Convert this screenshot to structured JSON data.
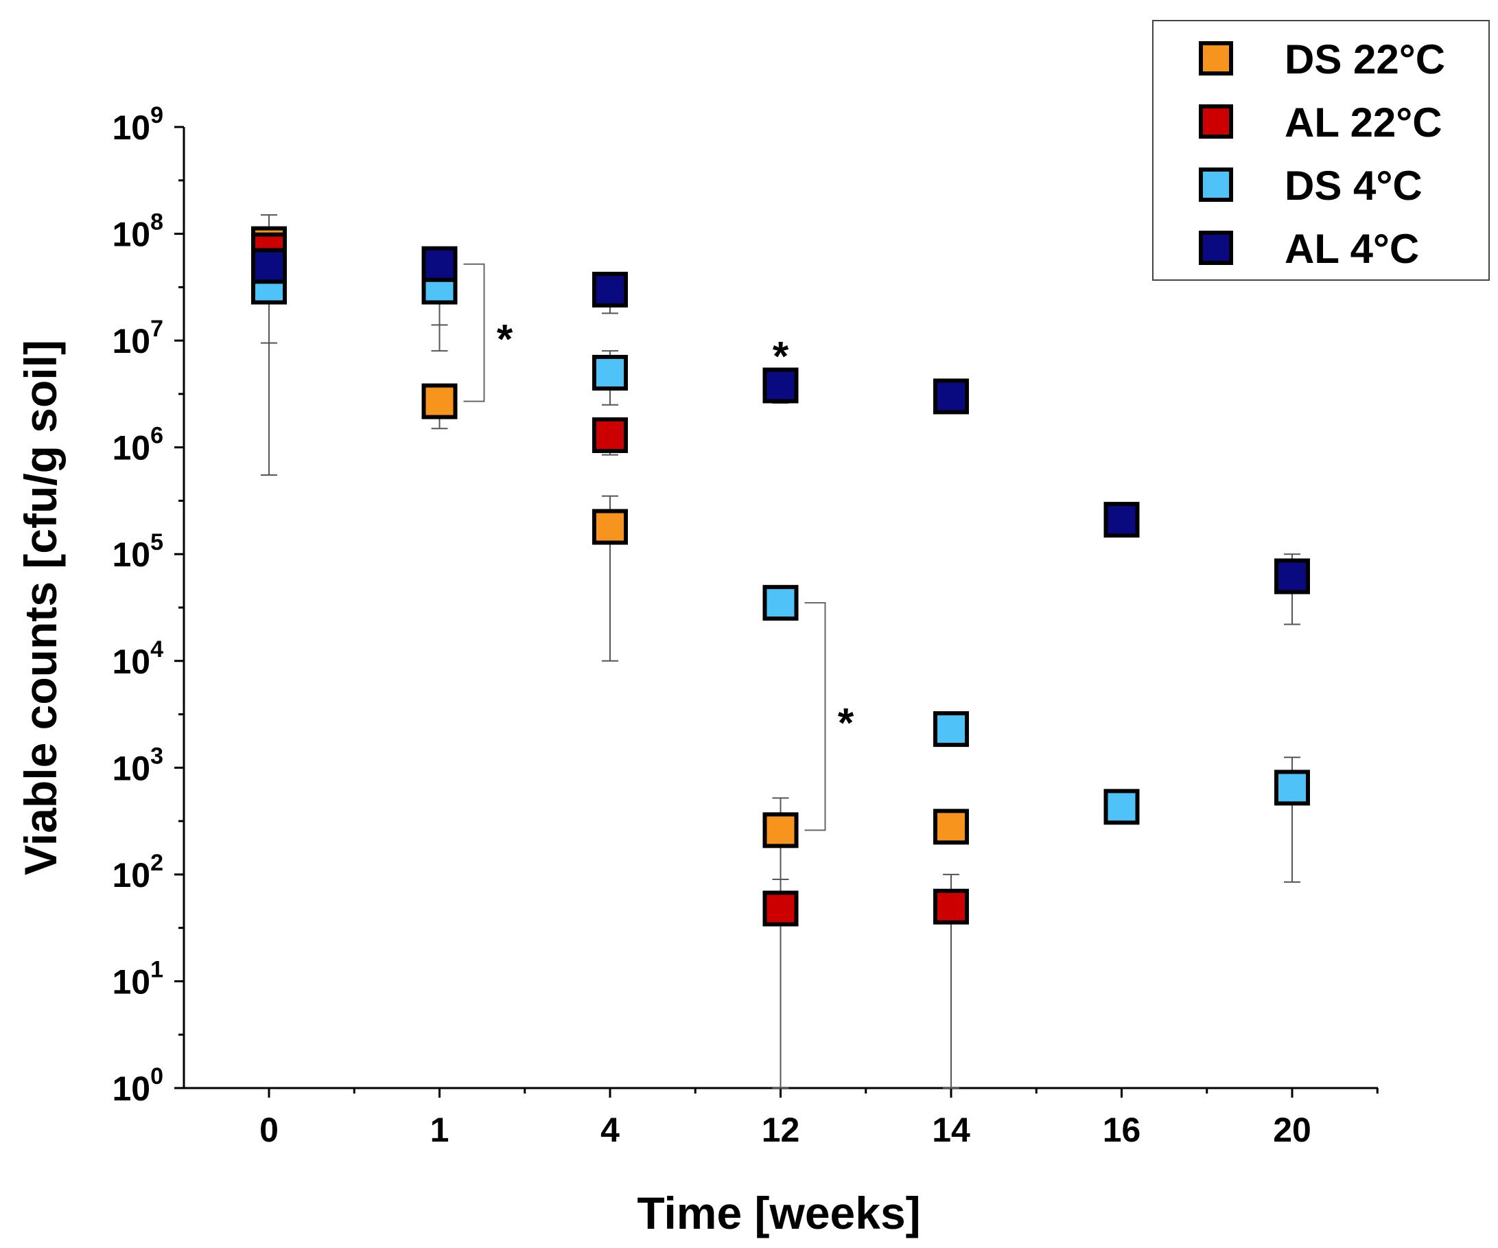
{
  "chart_data": {
    "type": "scatter",
    "xlabel": "Time [weeks]",
    "ylabel": "Viable counts [cfu/g soil]",
    "y_scale": "log10",
    "ylim_exponent": [
      0,
      9
    ],
    "y_ticks": [
      {
        "base": "10",
        "exp": "0"
      },
      {
        "base": "10",
        "exp": "1"
      },
      {
        "base": "10",
        "exp": "2"
      },
      {
        "base": "10",
        "exp": "3"
      },
      {
        "base": "10",
        "exp": "4"
      },
      {
        "base": "10",
        "exp": "5"
      },
      {
        "base": "10",
        "exp": "6"
      },
      {
        "base": "10",
        "exp": "7"
      },
      {
        "base": "10",
        "exp": "8"
      },
      {
        "base": "10",
        "exp": "9"
      }
    ],
    "categories": [
      "0",
      "1",
      "4",
      "12",
      "14",
      "16",
      "20"
    ],
    "legend_position": "top-right",
    "series": [
      {
        "name": "DS 22°C",
        "color": "#f7941d",
        "points": [
          {
            "x": "0",
            "y": 80000000.0,
            "err_low": 30000000.0,
            "err_high": 100000000.0
          },
          {
            "x": "1",
            "y": 2700000.0,
            "err_low": 1500000.0,
            "err_high": 3500000.0
          },
          {
            "x": "4",
            "y": 180000.0,
            "err_low": 10000.0,
            "err_high": 350000.0
          },
          {
            "x": "12",
            "y": 260,
            "err_low": 1,
            "err_high": 520
          },
          {
            "x": "14",
            "y": 280,
            "err_low": 240,
            "err_high": 320
          }
        ]
      },
      {
        "name": "AL 22°C",
        "color": "#cc0000",
        "points": [
          {
            "x": "0",
            "y": 70000000.0,
            "err_low": 40000000.0,
            "err_high": 90000000.0
          },
          {
            "x": "4",
            "y": 1300000.0,
            "err_low": 850000.0,
            "err_high": 1800000.0
          },
          {
            "x": "12",
            "y": 48,
            "err_low": 1,
            "err_high": 90
          },
          {
            "x": "14",
            "y": 50,
            "err_low": 1,
            "err_high": 100
          }
        ]
      },
      {
        "name": "DS 4°C",
        "color": "#4fc3f7",
        "points": [
          {
            "x": "0",
            "y": 32000000.0,
            "err_low": 550000.0,
            "err_high": 40000000.0
          },
          {
            "x": "1",
            "y": 32000000.0,
            "err_low": 8000000.0,
            "err_high": 40000000.0
          },
          {
            "x": "4",
            "y": 5000000.0,
            "err_low": 2500000.0,
            "err_high": 8000000.0
          },
          {
            "x": "12",
            "y": 35000.0,
            "err_low": 30000.0,
            "err_high": 45000.0
          },
          {
            "x": "14",
            "y": 2300,
            "err_low": 1900,
            "err_high": 2600
          },
          {
            "x": "16",
            "y": 430,
            "err_low": 330,
            "err_high": 550
          },
          {
            "x": "20",
            "y": 650,
            "err_low": 85,
            "err_high": 1250
          }
        ]
      },
      {
        "name": "AL 4°C",
        "color": "#0a0a80",
        "points": [
          {
            "x": "0",
            "y": 50000000.0,
            "err_low": 9500000.0,
            "err_high": 150000000.0
          },
          {
            "x": "1",
            "y": 52000000.0,
            "err_low": 14000000.0,
            "err_high": 60000000.0
          },
          {
            "x": "4",
            "y": 30000000.0,
            "err_low": 18000000.0,
            "err_high": 35000000.0
          },
          {
            "x": "12",
            "y": 3800000.0,
            "err_low": 2600000.0,
            "err_high": 4500000.0
          },
          {
            "x": "14",
            "y": 3000000.0,
            "err_low": 2600000.0,
            "err_high": 3400000.0
          },
          {
            "x": "16",
            "y": 210000.0,
            "err_low": 180000.0,
            "err_high": 240000.0
          },
          {
            "x": "20",
            "y": 62000.0,
            "err_low": 22000.0,
            "err_high": 100000.0
          }
        ]
      }
    ],
    "annotations": [
      {
        "type": "bracket",
        "x": "1",
        "y_top": 52000000.0,
        "y_bottom": 2700000.0,
        "label": "*"
      },
      {
        "type": "star",
        "x": "12",
        "y": 3800000.0,
        "label": "*"
      },
      {
        "type": "bracket",
        "x": "12",
        "y_top": 35000.0,
        "y_bottom": 260,
        "label": "*"
      }
    ]
  }
}
